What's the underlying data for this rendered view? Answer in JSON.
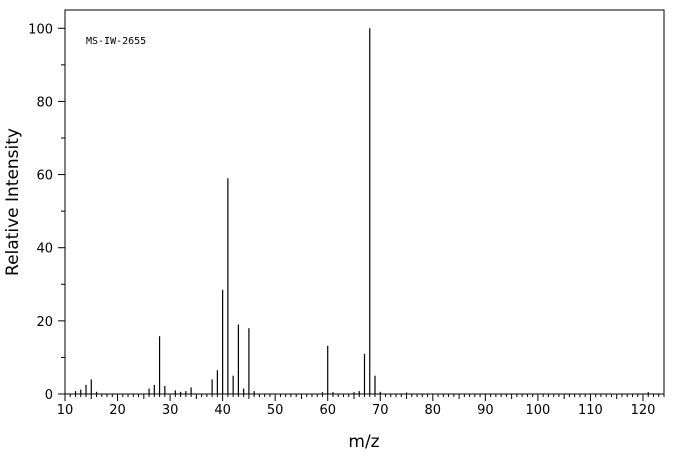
{
  "chart_data": {
    "type": "bar",
    "title": "",
    "annotation": "MS-IW-2655",
    "xlabel": "m/z",
    "ylabel": "Relative Intensity",
    "xlim": [
      10,
      124
    ],
    "ylim": [
      0,
      105
    ],
    "x_ticks": [
      10,
      20,
      30,
      40,
      50,
      60,
      70,
      80,
      90,
      100,
      110,
      120
    ],
    "y_ticks": [
      0,
      20,
      40,
      60,
      80,
      100
    ],
    "grid": false,
    "legend": "none",
    "peaks": [
      {
        "mz": 12,
        "intensity": 0.8
      },
      {
        "mz": 13,
        "intensity": 1.2
      },
      {
        "mz": 14,
        "intensity": 2.5
      },
      {
        "mz": 15,
        "intensity": 4.0
      },
      {
        "mz": 16,
        "intensity": 0.6
      },
      {
        "mz": 26,
        "intensity": 1.5
      },
      {
        "mz": 27,
        "intensity": 2.5
      },
      {
        "mz": 28,
        "intensity": 15.8
      },
      {
        "mz": 29,
        "intensity": 2.2
      },
      {
        "mz": 31,
        "intensity": 1.0
      },
      {
        "mz": 32,
        "intensity": 0.6
      },
      {
        "mz": 33,
        "intensity": 0.8
      },
      {
        "mz": 34,
        "intensity": 1.8
      },
      {
        "mz": 38,
        "intensity": 4.0
      },
      {
        "mz": 39,
        "intensity": 6.5
      },
      {
        "mz": 40,
        "intensity": 28.5
      },
      {
        "mz": 41,
        "intensity": 59.0
      },
      {
        "mz": 42,
        "intensity": 5.0
      },
      {
        "mz": 43,
        "intensity": 19.0
      },
      {
        "mz": 44,
        "intensity": 1.5
      },
      {
        "mz": 45,
        "intensity": 18.0
      },
      {
        "mz": 46,
        "intensity": 0.8
      },
      {
        "mz": 59,
        "intensity": 0.5
      },
      {
        "mz": 60,
        "intensity": 13.2
      },
      {
        "mz": 61,
        "intensity": 0.5
      },
      {
        "mz": 65,
        "intensity": 0.5
      },
      {
        "mz": 66,
        "intensity": 0.8
      },
      {
        "mz": 67,
        "intensity": 11.0
      },
      {
        "mz": 68,
        "intensity": 100.0
      },
      {
        "mz": 69,
        "intensity": 5.0
      },
      {
        "mz": 70,
        "intensity": 0.6
      },
      {
        "mz": 75,
        "intensity": 0.4
      },
      {
        "mz": 121,
        "intensity": 0.5
      }
    ]
  }
}
